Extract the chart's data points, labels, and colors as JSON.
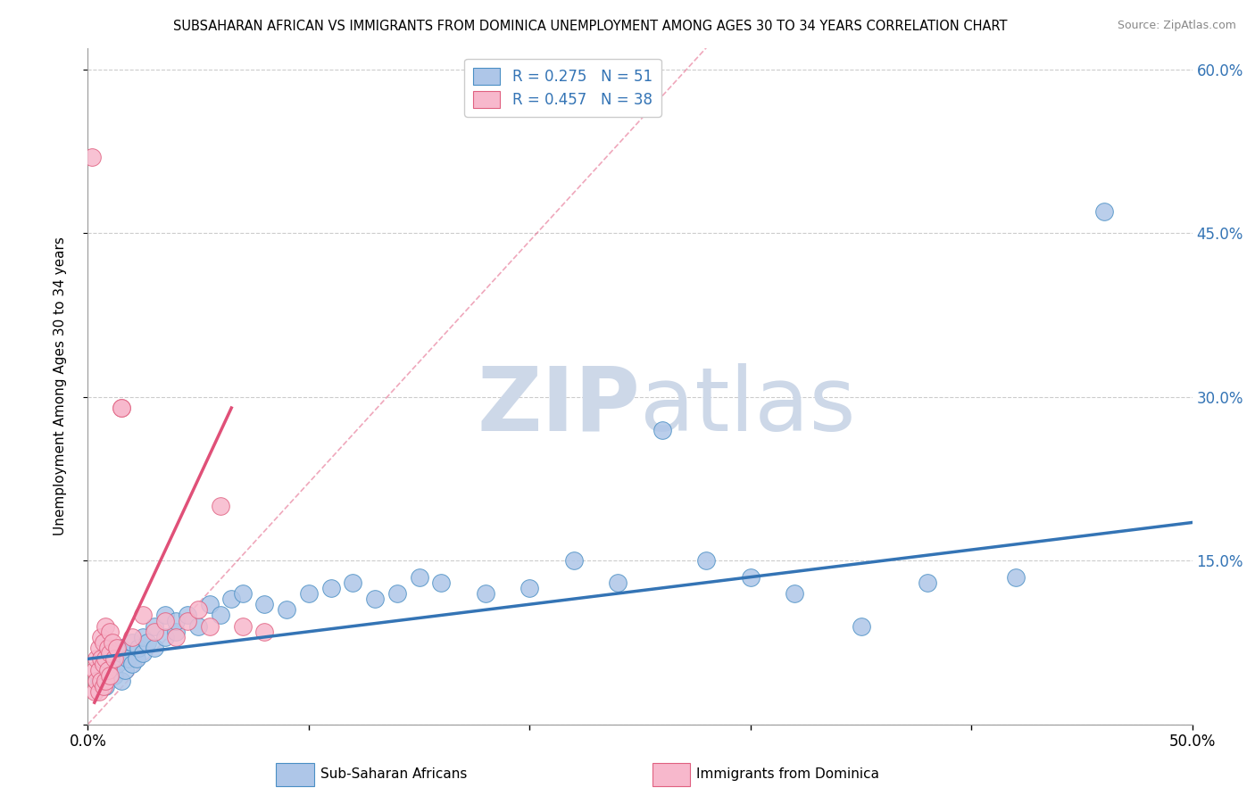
{
  "title": "SUBSAHARAN AFRICAN VS IMMIGRANTS FROM DOMINICA UNEMPLOYMENT AMONG AGES 30 TO 34 YEARS CORRELATION CHART",
  "source": "Source: ZipAtlas.com",
  "ylabel": "Unemployment Among Ages 30 to 34 years",
  "xlim": [
    0,
    0.5
  ],
  "ylim": [
    0,
    0.62
  ],
  "blue_R": 0.275,
  "blue_N": 51,
  "pink_R": 0.457,
  "pink_N": 38,
  "blue_color": "#aec6e8",
  "blue_edge_color": "#4a8fc4",
  "blue_line_color": "#3474b5",
  "pink_color": "#f7b8cc",
  "pink_edge_color": "#e06080",
  "pink_line_color": "#e05078",
  "raxis_color": "#3474b5",
  "watermark_color": "#cdd8e8",
  "legend_label_blue": "Sub-Saharan Africans",
  "legend_label_pink": "Immigrants from Dominica",
  "blue_scatter_x": [
    0.005,
    0.008,
    0.01,
    0.01,
    0.012,
    0.013,
    0.015,
    0.015,
    0.015,
    0.017,
    0.018,
    0.02,
    0.02,
    0.022,
    0.023,
    0.025,
    0.025,
    0.027,
    0.03,
    0.03,
    0.035,
    0.035,
    0.04,
    0.04,
    0.045,
    0.05,
    0.055,
    0.06,
    0.065,
    0.07,
    0.08,
    0.09,
    0.1,
    0.11,
    0.12,
    0.13,
    0.14,
    0.15,
    0.16,
    0.18,
    0.2,
    0.22,
    0.24,
    0.26,
    0.28,
    0.3,
    0.32,
    0.35,
    0.38,
    0.42,
    0.46
  ],
  "blue_scatter_y": [
    0.04,
    0.035,
    0.05,
    0.06,
    0.045,
    0.055,
    0.04,
    0.065,
    0.07,
    0.05,
    0.06,
    0.055,
    0.075,
    0.06,
    0.07,
    0.065,
    0.08,
    0.075,
    0.07,
    0.09,
    0.08,
    0.1,
    0.085,
    0.095,
    0.1,
    0.09,
    0.11,
    0.1,
    0.115,
    0.12,
    0.11,
    0.105,
    0.12,
    0.125,
    0.13,
    0.115,
    0.12,
    0.135,
    0.13,
    0.12,
    0.125,
    0.15,
    0.13,
    0.27,
    0.15,
    0.135,
    0.12,
    0.09,
    0.13,
    0.135,
    0.47
  ],
  "pink_scatter_x": [
    0.002,
    0.003,
    0.003,
    0.004,
    0.004,
    0.005,
    0.005,
    0.005,
    0.006,
    0.006,
    0.006,
    0.007,
    0.007,
    0.007,
    0.008,
    0.008,
    0.008,
    0.009,
    0.009,
    0.01,
    0.01,
    0.01,
    0.011,
    0.012,
    0.013,
    0.015,
    0.015,
    0.02,
    0.025,
    0.03,
    0.035,
    0.04,
    0.045,
    0.05,
    0.055,
    0.06,
    0.07,
    0.08
  ],
  "pink_scatter_y": [
    0.52,
    0.03,
    0.05,
    0.04,
    0.06,
    0.03,
    0.05,
    0.07,
    0.04,
    0.06,
    0.08,
    0.035,
    0.055,
    0.075,
    0.04,
    0.06,
    0.09,
    0.05,
    0.07,
    0.045,
    0.065,
    0.085,
    0.075,
    0.06,
    0.07,
    0.29,
    0.29,
    0.08,
    0.1,
    0.085,
    0.095,
    0.08,
    0.095,
    0.105,
    0.09,
    0.2,
    0.09,
    0.085
  ],
  "blue_line_x0": 0.0,
  "blue_line_y0": 0.06,
  "blue_line_x1": 0.5,
  "blue_line_y1": 0.185,
  "pink_line_solid_x0": 0.003,
  "pink_line_solid_y0": 0.02,
  "pink_line_solid_x1": 0.065,
  "pink_line_solid_y1": 0.29,
  "pink_line_dash_x0": 0.0,
  "pink_line_dash_y0": 0.0,
  "pink_line_dash_x1": 0.28,
  "pink_line_dash_y1": 0.62
}
